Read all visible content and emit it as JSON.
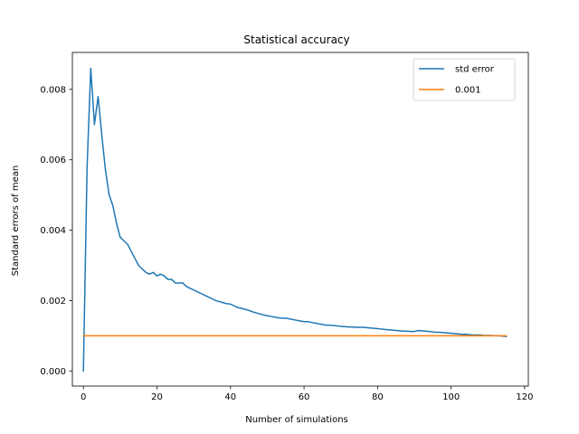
{
  "chart_data": {
    "type": "line",
    "title": "Statistical accuracy",
    "xlabel": "Number of simulations",
    "ylabel": "Standard errors of mean",
    "xlim": [
      -3,
      121
    ],
    "ylim": [
      -0.00043,
      0.00905
    ],
    "xticks": [
      0,
      20,
      40,
      60,
      80,
      100,
      120
    ],
    "xtick_labels": [
      "0",
      "20",
      "40",
      "60",
      "80",
      "100",
      "120"
    ],
    "yticks": [
      0,
      0.002,
      0.004,
      0.006,
      0.008
    ],
    "ytick_labels": [
      "0.000",
      "0.002",
      "0.004",
      "0.006",
      "0.008"
    ],
    "grid": false,
    "legend": {
      "position": "top-right"
    },
    "series": [
      {
        "name": "std error",
        "color": "#1f77b4",
        "x": [
          0,
          1,
          2,
          3,
          4,
          5,
          6,
          7,
          8,
          9,
          10,
          11,
          12,
          13,
          14,
          15,
          16,
          17,
          18,
          19,
          20,
          21,
          22,
          23,
          24,
          25,
          26,
          27,
          28,
          29,
          30,
          31,
          32,
          33,
          34,
          35,
          36,
          37,
          38,
          39,
          40,
          41,
          42,
          43,
          44,
          45,
          46,
          47,
          48,
          49,
          50,
          51,
          52,
          53,
          54,
          55,
          56,
          57,
          58,
          59,
          60,
          61,
          62,
          63,
          64,
          65,
          66,
          67,
          68,
          69,
          70,
          71,
          72,
          73,
          74,
          75,
          76,
          77,
          78,
          79,
          80,
          81,
          82,
          83,
          84,
          85,
          86,
          87,
          88,
          89,
          90,
          91,
          92,
          93,
          94,
          95,
          96,
          97,
          98,
          99,
          100,
          101,
          102,
          103,
          104,
          105,
          106,
          107,
          108,
          109,
          110,
          111,
          112,
          113,
          114,
          115
        ],
        "y": [
          0.0,
          0.0058,
          0.0086,
          0.007,
          0.0078,
          0.0067,
          0.0057,
          0.005,
          0.0047,
          0.0042,
          0.0038,
          0.0037,
          0.0036,
          0.0034,
          0.0032,
          0.003,
          0.0029,
          0.0028,
          0.00275,
          0.0028,
          0.0027,
          0.00275,
          0.0027,
          0.0026,
          0.0026,
          0.0025,
          0.0025,
          0.0025,
          0.0024,
          0.00235,
          0.0023,
          0.00225,
          0.0022,
          0.00215,
          0.0021,
          0.00205,
          0.002,
          0.00197,
          0.00194,
          0.00191,
          0.0019,
          0.00185,
          0.0018,
          0.00178,
          0.00175,
          0.00172,
          0.00168,
          0.00165,
          0.00162,
          0.00159,
          0.00157,
          0.00155,
          0.00153,
          0.00151,
          0.0015,
          0.0015,
          0.00148,
          0.00146,
          0.00144,
          0.00142,
          0.0014,
          0.0014,
          0.00138,
          0.00136,
          0.00134,
          0.00132,
          0.0013,
          0.0013,
          0.00129,
          0.00128,
          0.00127,
          0.00126,
          0.00125,
          0.00125,
          0.00124,
          0.00124,
          0.00124,
          0.00123,
          0.00122,
          0.00121,
          0.0012,
          0.00119,
          0.00118,
          0.00117,
          0.00116,
          0.00115,
          0.00114,
          0.00113,
          0.00113,
          0.00112,
          0.00112,
          0.00115,
          0.00114,
          0.00113,
          0.00112,
          0.00111,
          0.0011,
          0.0011,
          0.00109,
          0.00108,
          0.00107,
          0.00106,
          0.00105,
          0.00104,
          0.00104,
          0.00103,
          0.00102,
          0.00102,
          0.00102,
          0.00101,
          0.00101,
          0.00101,
          0.001,
          0.001,
          0.00099,
          0.00098
        ]
      },
      {
        "name": "0.001",
        "color": "#ff7f0e",
        "x": [
          0,
          115
        ],
        "y": [
          0.001,
          0.001
        ]
      }
    ]
  }
}
